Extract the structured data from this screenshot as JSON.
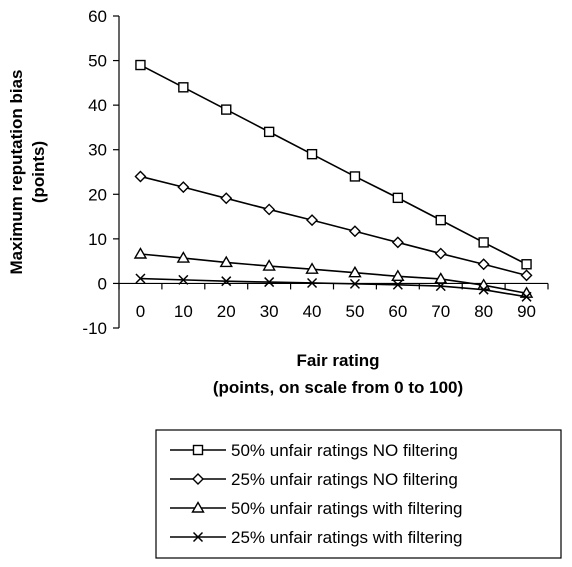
{
  "chart_data": {
    "type": "line",
    "x": [
      0,
      10,
      20,
      30,
      40,
      50,
      60,
      70,
      80,
      90
    ],
    "xlabel": [
      "Fair rating",
      "(points, on scale from 0 to 100)"
    ],
    "ylabel": [
      "Maximum reputation bias",
      "(points)"
    ],
    "ylim": [
      -10,
      60
    ],
    "yticks": [
      -10,
      0,
      10,
      20,
      30,
      40,
      50,
      60
    ],
    "xticks": [
      0,
      10,
      20,
      30,
      40,
      50,
      60,
      70,
      80,
      90
    ],
    "grid": false,
    "legend_position": "bottom",
    "series": [
      {
        "name": "50% unfair ratings NO filtering",
        "marker": "square",
        "values": [
          49,
          44,
          39,
          34,
          29,
          24,
          19.2,
          14.2,
          9.2,
          4.3
        ]
      },
      {
        "name": "25% unfair ratings NO filtering",
        "marker": "diamond",
        "values": [
          24,
          21.6,
          19.1,
          16.6,
          14.2,
          11.7,
          9.2,
          6.7,
          4.3,
          1.8
        ]
      },
      {
        "name": "50% unfair ratings with filtering",
        "marker": "triangle",
        "values": [
          6.6,
          5.7,
          4.7,
          3.9,
          3.2,
          2.4,
          1.6,
          1.0,
          -0.4,
          -2.2
        ]
      },
      {
        "name": "25% unfair ratings with filtering",
        "marker": "x",
        "values": [
          1.1,
          0.8,
          0.5,
          0.3,
          0.1,
          -0.1,
          -0.3,
          -0.6,
          -1.4,
          -3.0
        ]
      }
    ]
  }
}
